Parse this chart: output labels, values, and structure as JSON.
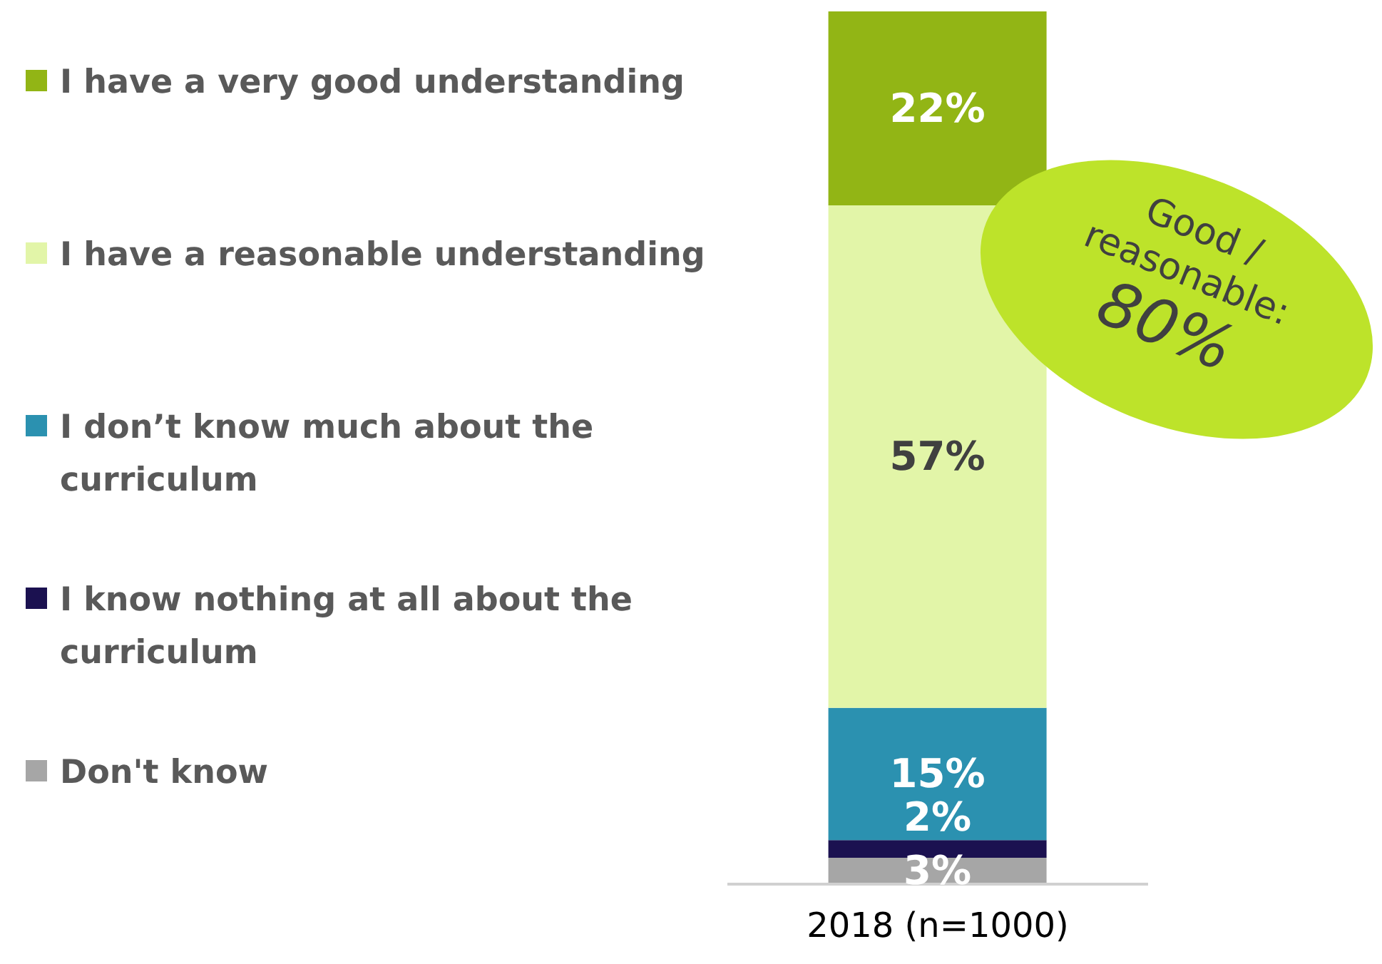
{
  "chart_data": {
    "type": "bar",
    "stacked": true,
    "categories": [
      "2018 (n=1000)"
    ],
    "series": [
      {
        "name": "Don't know",
        "color": "#a6a6a6",
        "values": [
          3
        ],
        "value_labels": [
          "3%"
        ]
      },
      {
        "name": "I know nothing at all about the curriculum",
        "color": "#1b1150",
        "values": [
          2
        ],
        "value_labels": [
          "2%"
        ]
      },
      {
        "name": "I don’t know much about the curriculum",
        "color": "#2b91b0",
        "values": [
          15
        ],
        "value_labels": [
          "15%"
        ]
      },
      {
        "name": "I have a reasonable understanding",
        "color": "#e2f5a8",
        "values": [
          57
        ],
        "value_labels": [
          "57%"
        ]
      },
      {
        "name": "I have a very good understanding",
        "color": "#92b515",
        "values": [
          22
        ],
        "value_labels": [
          "22%"
        ]
      }
    ],
    "legend": "left",
    "grid": false,
    "annotations": [
      "Good /\nreasonable:\n80%"
    ]
  }
}
